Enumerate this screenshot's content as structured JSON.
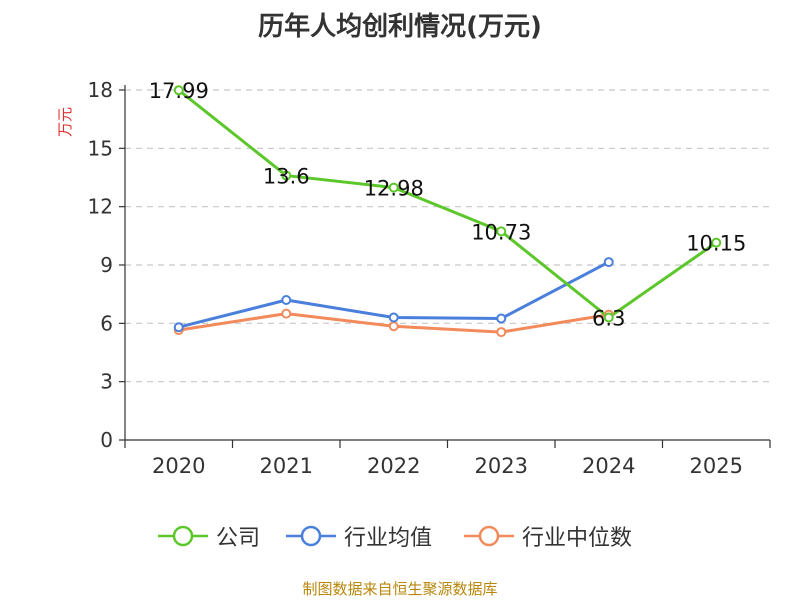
{
  "chart_data": {
    "type": "line",
    "title": "历年人均创利情况(万元)",
    "ylabel": "万元",
    "xlabel": "",
    "categories": [
      "2020",
      "2021",
      "2022",
      "2023",
      "2024",
      "2025"
    ],
    "ylim": [
      0,
      18
    ],
    "yticks": [
      0,
      3,
      6,
      9,
      12,
      15,
      18
    ],
    "grid": true,
    "legend_position": "bottom",
    "series": [
      {
        "name": "公司",
        "color": "#5cc72a",
        "values": [
          17.99,
          13.6,
          12.98,
          10.73,
          6.3,
          10.15
        ],
        "labels": [
          "17.99",
          "13.6",
          "12.98",
          "10.73",
          "6.3",
          "10.15"
        ]
      },
      {
        "name": "行业均值",
        "color": "#4a7fdb",
        "values": [
          5.8,
          7.2,
          6.3,
          6.25,
          9.15,
          null
        ]
      },
      {
        "name": "行业中位数",
        "color": "#f28a5b",
        "values": [
          5.65,
          6.5,
          5.85,
          5.55,
          6.45,
          null
        ]
      }
    ]
  },
  "source": "制图数据来自恒生聚源数据库"
}
